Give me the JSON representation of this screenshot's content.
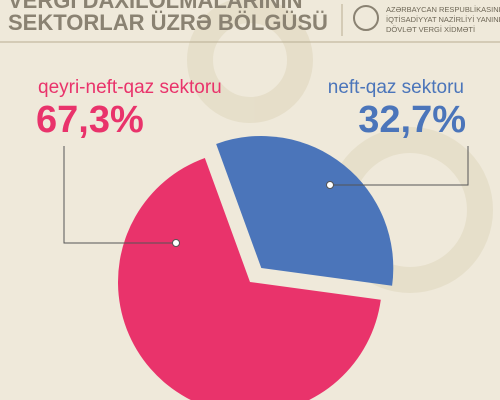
{
  "header": {
    "organization": [
      "AZƏRBAYCAN RESPUBLİKASININ",
      "İQTİSADİYYAT NAZİRLİYİ YANINDA",
      "DÖVLƏT VERGİ XİDMƏTİ"
    ]
  },
  "chart_data": {
    "type": "pie",
    "title": [
      "VERGİ DAXİLOLMALARININ",
      "SEKTORLAR ÜZRƏ BÖLGÜSÜ"
    ],
    "categories": [
      "qeyri-neft-qaz sektoru",
      "neft-qaz sektoru"
    ],
    "values": [
      67.3,
      32.7
    ],
    "value_labels": [
      "67,3%",
      "32,7%"
    ],
    "colors": [
      "#e9336b",
      "#4b75ba"
    ]
  }
}
